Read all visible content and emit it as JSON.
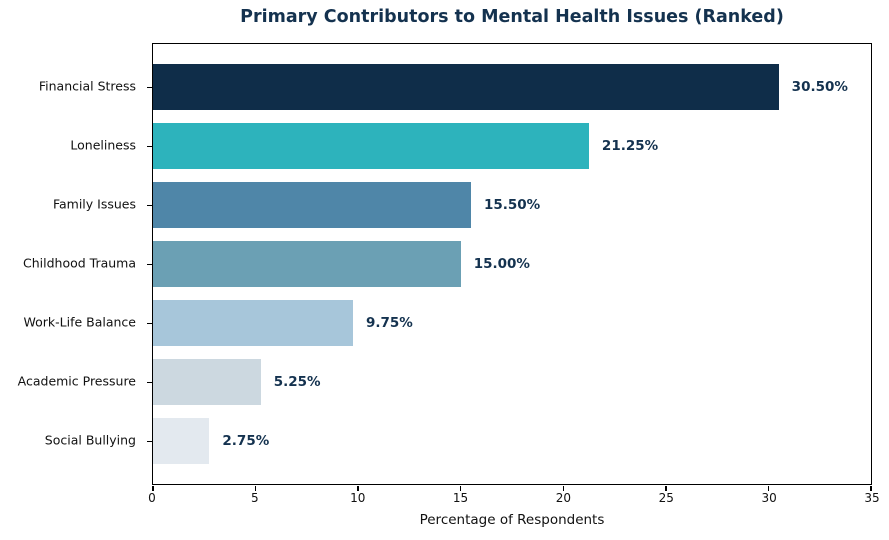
{
  "chart_data": {
    "type": "bar",
    "orientation": "horizontal",
    "title": "Primary Contributors to Mental Health Issues (Ranked)",
    "xlabel": "Percentage of Respondents",
    "ylabel": "",
    "categories": [
      "Financial Stress",
      "Loneliness",
      "Family Issues",
      "Childhood Trauma",
      "Work-Life Balance",
      "Academic Pressure",
      "Social Bullying"
    ],
    "values": [
      30.5,
      21.25,
      15.5,
      15.0,
      9.75,
      5.25,
      2.75
    ],
    "value_labels": [
      "30.50%",
      "21.25%",
      "15.50%",
      "15.00%",
      "9.75%",
      "5.25%",
      "2.75%"
    ],
    "bar_colors": [
      "#0f2d49",
      "#2db3bc",
      "#4f86a8",
      "#6ba0b4",
      "#a7c6da",
      "#ccd8e0",
      "#e3e9ef"
    ],
    "xlim": [
      0,
      35
    ],
    "xticks": [
      0,
      5,
      10,
      15,
      20,
      25,
      30,
      35
    ],
    "grid": false,
    "legend": "none",
    "title_color": "#14324f",
    "value_label_color": "#14324f",
    "axis_color": "#000000",
    "background_color": "#ffffff"
  }
}
